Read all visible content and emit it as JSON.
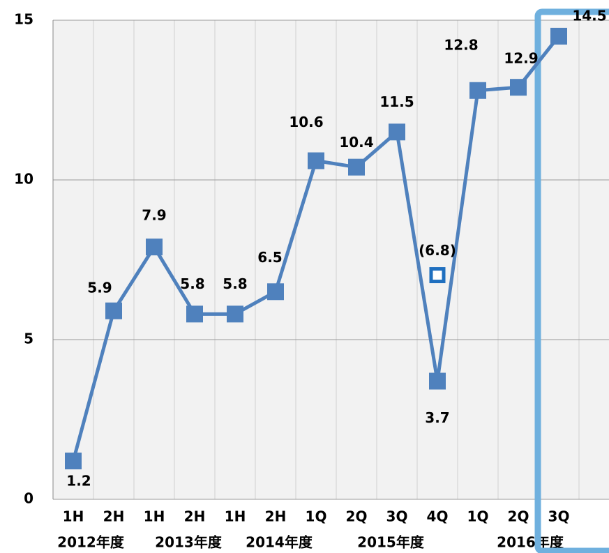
{
  "chart_data": {
    "type": "line",
    "categories": [
      "1H",
      "2H",
      "1H",
      "2H",
      "1H",
      "2H",
      "1Q",
      "2Q",
      "3Q",
      "4Q",
      "1Q",
      "2Q",
      "3Q"
    ],
    "groups": [
      "2012年度",
      "2013年度",
      "2014年度",
      "2015年度",
      "2016年度"
    ],
    "series": [
      {
        "name": null,
        "color": "#4f81bd",
        "values": [
          1.2,
          5.9,
          7.9,
          5.8,
          5.8,
          6.5,
          10.6,
          10.4,
          11.5,
          3.7,
          12.8,
          12.9,
          14.5
        ]
      }
    ],
    "annotation": {
      "value": 6.8,
      "value_label": "(6.8)",
      "color": "#1f6fbf"
    },
    "ylim": [
      0,
      15
    ],
    "yticks": [
      0,
      5,
      10,
      15
    ],
    "grid": true
  }
}
